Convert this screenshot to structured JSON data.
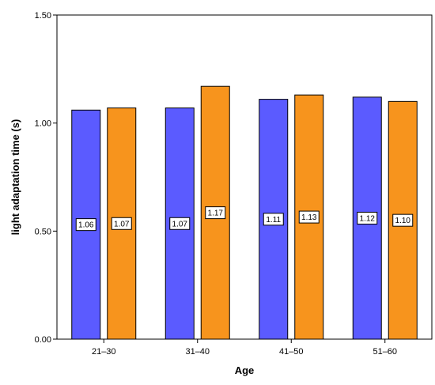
{
  "chart_data": {
    "type": "bar",
    "title": "",
    "xlabel": "Age",
    "ylabel": "light adaptation time (s)",
    "categories": [
      "21–30",
      "31–40",
      "41–50",
      "51–60"
    ],
    "series": [
      {
        "values": [
          1.06,
          1.07,
          1.11,
          1.12
        ],
        "labels": [
          "1.06",
          "1.07",
          "1.11",
          "1.12"
        ],
        "color": "#5b5bff"
      },
      {
        "values": [
          1.07,
          1.17,
          1.13,
          1.1
        ],
        "labels": [
          "1.07",
          "1.17",
          "1.13",
          "1.10"
        ],
        "color": "#f7941d"
      }
    ],
    "ylim": [
      0,
      1.5
    ],
    "yticks": [
      0,
      0.5,
      1.0,
      1.5
    ],
    "ytick_labels": [
      "0.00",
      "0.50",
      "1.00",
      "1.50"
    ],
    "grid": false,
    "data_labels": true
  }
}
